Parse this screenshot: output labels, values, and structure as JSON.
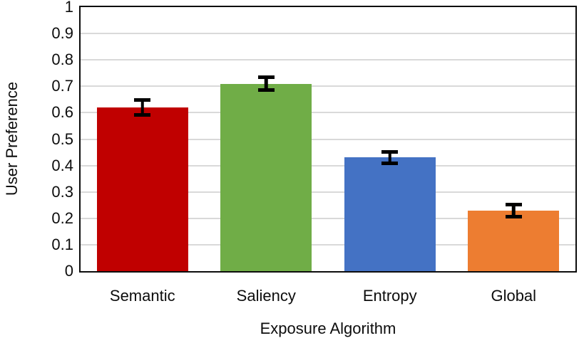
{
  "chart_data": {
    "type": "bar",
    "title": "",
    "xlabel": "Exposure Algorithm",
    "ylabel": "User Preference",
    "categories": [
      "Semantic",
      "Saliency",
      "Entropy",
      "Global"
    ],
    "values": [
      0.62,
      0.71,
      0.43,
      0.23
    ],
    "errors": [
      0.035,
      0.032,
      0.028,
      0.03
    ],
    "bar_colors": [
      "#c00000",
      "#70ad47",
      "#4472c4",
      "#ed7d31"
    ],
    "ylim": [
      0,
      1
    ],
    "ytick_labels": [
      "0",
      "0.1",
      "0.2",
      "0.3",
      "0.4",
      "0.5",
      "0.6",
      "0.7",
      "0.8",
      "0.9",
      "1"
    ],
    "grid": true,
    "gridline_color": "#d9d9d9",
    "axis_color": "#0d0d0d",
    "error_bar_color": "#000000",
    "legend_position": "none"
  }
}
